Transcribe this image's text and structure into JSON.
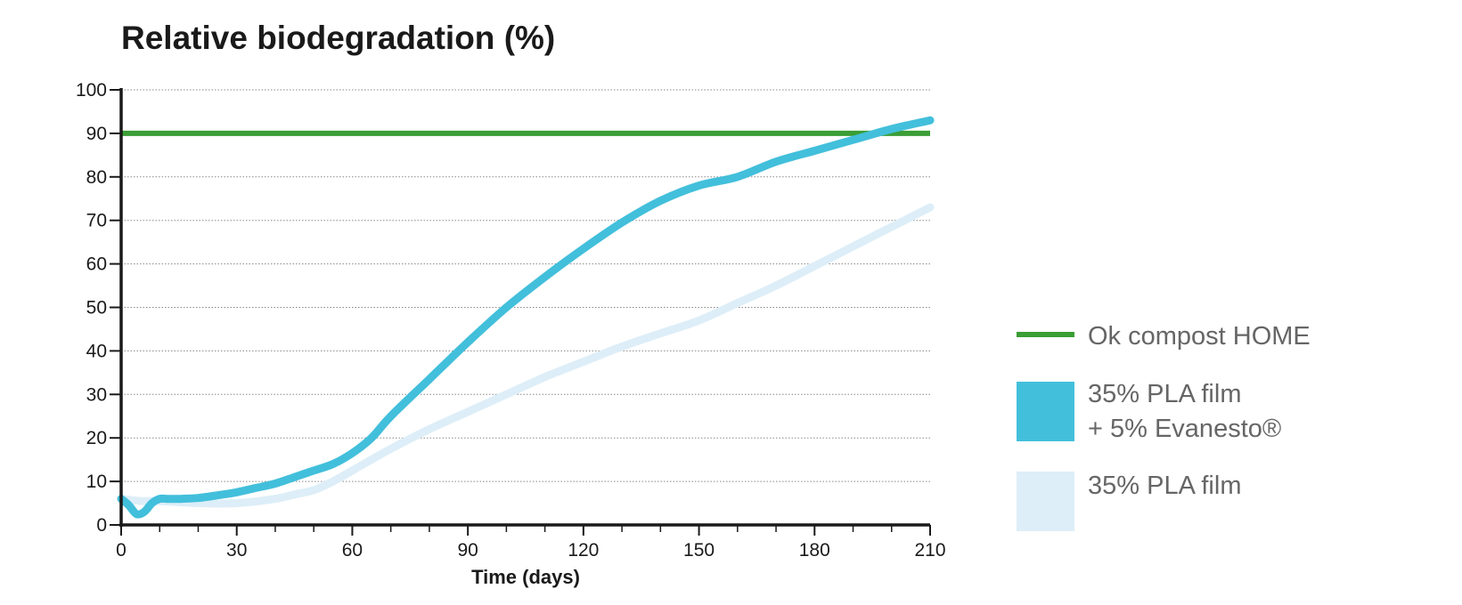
{
  "chart_data": {
    "type": "line",
    "title": "Relative biodegradation (%)",
    "xlabel": "Time (days)",
    "ylabel": "",
    "xlim": [
      0,
      210
    ],
    "ylim": [
      0,
      100
    ],
    "x_ticks": [
      0,
      30,
      60,
      90,
      120,
      150,
      180,
      210
    ],
    "y_ticks": [
      0,
      10,
      20,
      30,
      40,
      50,
      60,
      70,
      80,
      90,
      100
    ],
    "x_minor_ticks": [
      10,
      20,
      40,
      50,
      70,
      80,
      100,
      110,
      130,
      140,
      160,
      170,
      190,
      200
    ],
    "grid": "horizontal dotted",
    "legend_position": "right",
    "series": [
      {
        "name": "Ok compost HOME",
        "color": "#3a9e35",
        "legend_style": "line",
        "x": [
          0,
          210
        ],
        "y": [
          90,
          90
        ]
      },
      {
        "name": "35% PLA film",
        "color": "#ddeef8",
        "legend_style": "box",
        "x": [
          0,
          5,
          10,
          20,
          30,
          40,
          45,
          50,
          55,
          60,
          70,
          80,
          90,
          100,
          110,
          120,
          130,
          140,
          150,
          160,
          170,
          180,
          190,
          200,
          210
        ],
        "y": [
          6,
          5.5,
          5.5,
          5,
          5,
          6,
          7,
          8,
          10,
          12.5,
          17.5,
          22,
          26,
          30,
          34,
          37.5,
          41,
          44,
          47,
          51,
          55,
          59.5,
          64,
          68.5,
          73
        ]
      },
      {
        "name": "35% PLA film + 5% Evanesto®",
        "legend_lines": [
          "35% PLA film",
          "+ 5% Evanesto®"
        ],
        "color": "#42bfdb",
        "legend_style": "box",
        "x": [
          0,
          2,
          4,
          6,
          8,
          10,
          12,
          15,
          20,
          25,
          30,
          35,
          40,
          45,
          50,
          55,
          60,
          65,
          70,
          80,
          90,
          100,
          110,
          120,
          130,
          140,
          150,
          160,
          170,
          180,
          190,
          200,
          210
        ],
        "y": [
          6,
          4.5,
          2.5,
          3,
          5,
          6,
          6,
          6,
          6.2,
          6.8,
          7.5,
          8.5,
          9.5,
          11,
          12.5,
          14,
          16.5,
          20,
          25,
          33.5,
          42,
          50,
          57,
          63.5,
          69.5,
          74.5,
          78,
          80,
          83.5,
          86,
          88.5,
          91,
          93
        ]
      }
    ]
  }
}
